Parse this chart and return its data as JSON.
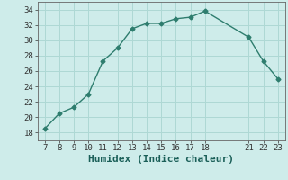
{
  "x": [
    7,
    8,
    9,
    10,
    11,
    12,
    13,
    14,
    15,
    16,
    17,
    18,
    21,
    22,
    23
  ],
  "y": [
    18.5,
    20.5,
    21.3,
    23.0,
    27.3,
    29.0,
    31.5,
    32.2,
    32.2,
    32.8,
    33.0,
    33.8,
    30.4,
    27.3,
    25.0
  ],
  "line_color": "#2e7d6e",
  "marker": "D",
  "marker_size": 2.5,
  "bg_color": "#ceecea",
  "grid_color": "#aed8d4",
  "xlabel": "Humidex (Indice chaleur)",
  "ylim": [
    17,
    35
  ],
  "xlim": [
    6.5,
    23.5
  ],
  "yticks": [
    18,
    20,
    22,
    24,
    26,
    28,
    30,
    32,
    34
  ],
  "xticks": [
    7,
    8,
    9,
    10,
    11,
    12,
    13,
    14,
    15,
    16,
    17,
    18,
    21,
    22,
    23
  ],
  "tick_fontsize": 6.5,
  "xlabel_fontsize": 8,
  "line_width": 1.0
}
